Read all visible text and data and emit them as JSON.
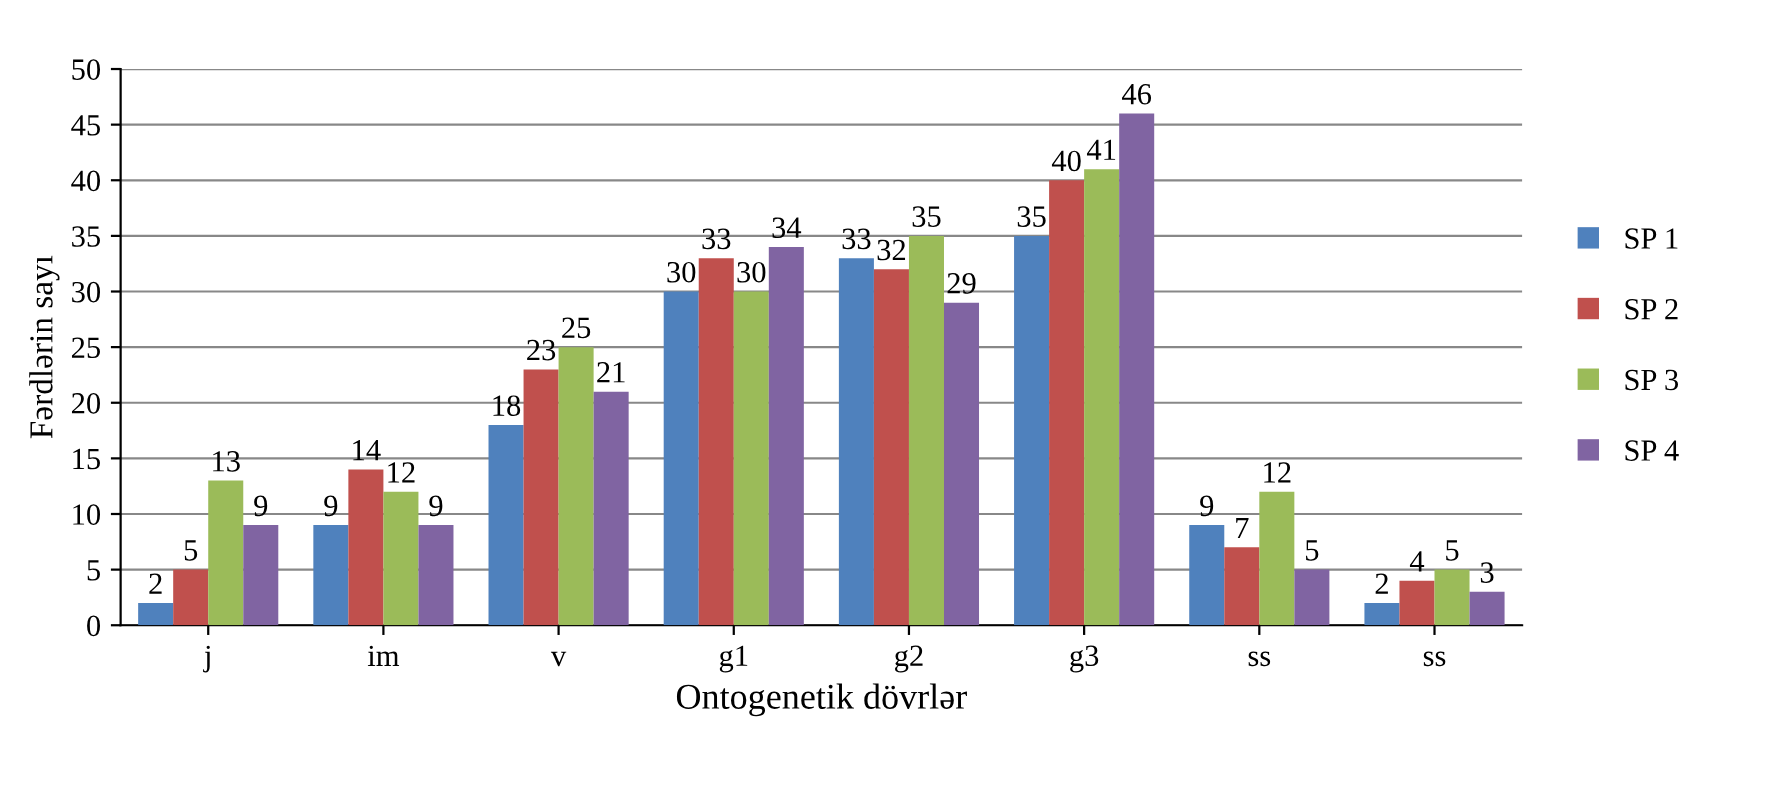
{
  "chart_data": {
    "type": "bar",
    "xlabel": "Ontogenetik dövrlər",
    "ylabel": "Fərdlərin sayı",
    "categories": [
      "j",
      "im",
      "v",
      "g1",
      "g2",
      "g3",
      "ss",
      "ss"
    ],
    "series": [
      {
        "name": "SP 1",
        "color": "#4f81bd",
        "values": [
          2,
          9,
          18,
          30,
          33,
          35,
          9,
          2
        ]
      },
      {
        "name": "SP 2",
        "color": "#c0504d",
        "values": [
          5,
          14,
          23,
          33,
          32,
          40,
          7,
          4
        ]
      },
      {
        "name": "SP 3",
        "color": "#9bbb59",
        "values": [
          13,
          12,
          25,
          30,
          35,
          41,
          12,
          5
        ]
      },
      {
        "name": "SP 4",
        "color": "#8064a2",
        "values": [
          9,
          9,
          21,
          34,
          29,
          46,
          5,
          3
        ]
      }
    ],
    "ylim": [
      0,
      50
    ],
    "yticks": [
      0,
      5,
      10,
      15,
      20,
      25,
      30,
      35,
      40,
      45,
      50
    ],
    "grid": "y",
    "legend": "right",
    "data_labels": true
  }
}
